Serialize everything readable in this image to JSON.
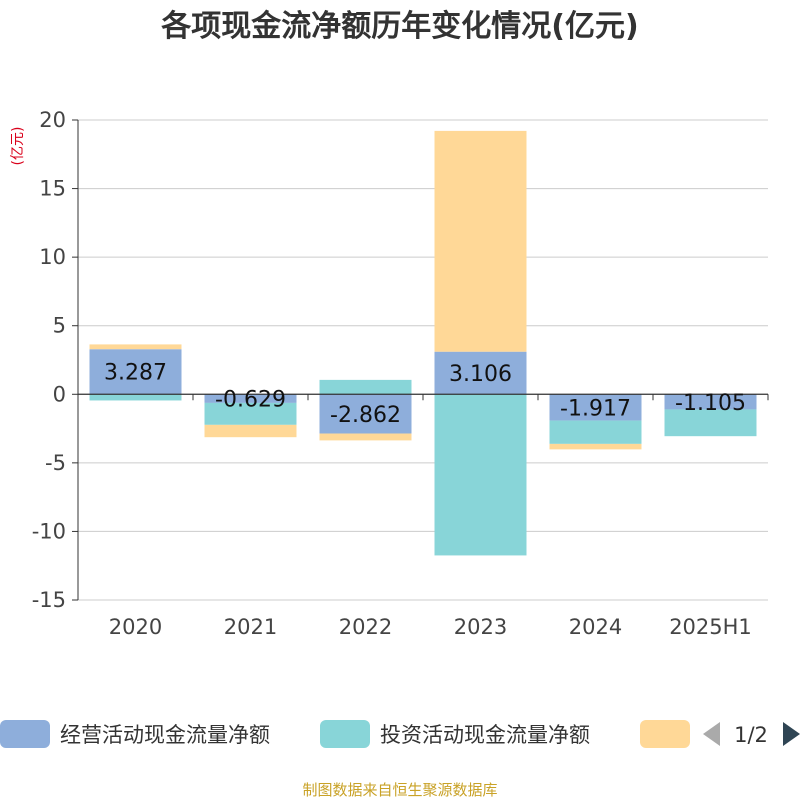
{
  "chart_data": {
    "type": "bar",
    "stacked": true,
    "title": "各项现金流净额历年变化情况(亿元)",
    "unit_label": "(亿元)",
    "categories": [
      "2020",
      "2021",
      "2022",
      "2023",
      "2024",
      "2025H1"
    ],
    "series": [
      {
        "name": "经营活动现金流量净额",
        "color": "#8eaedb",
        "values": [
          3.287,
          -0.629,
          -2.862,
          3.106,
          -1.917,
          -1.105
        ]
      },
      {
        "name": "投资活动现金流量净额",
        "color": "#88d5d8",
        "values": [
          -0.45,
          -1.6,
          1.05,
          -11.75,
          -1.7,
          -1.95
        ]
      },
      {
        "name": "",
        "color": "#ffd897",
        "values": [
          0.35,
          -0.9,
          -0.5,
          16.1,
          -0.4,
          0
        ]
      }
    ],
    "data_labels": [
      "3.287",
      "-0.629",
      "-2.862",
      "3.106",
      "-1.917",
      "-1.105"
    ],
    "ylim": [
      -15,
      20
    ],
    "yticks": [
      20,
      15,
      10,
      5,
      0,
      -5,
      -10,
      -15
    ],
    "grid": true,
    "legend_position": "bottom"
  },
  "legend": {
    "pager": "1/2"
  },
  "source_text": "制图数据来自恒生聚源数据库"
}
